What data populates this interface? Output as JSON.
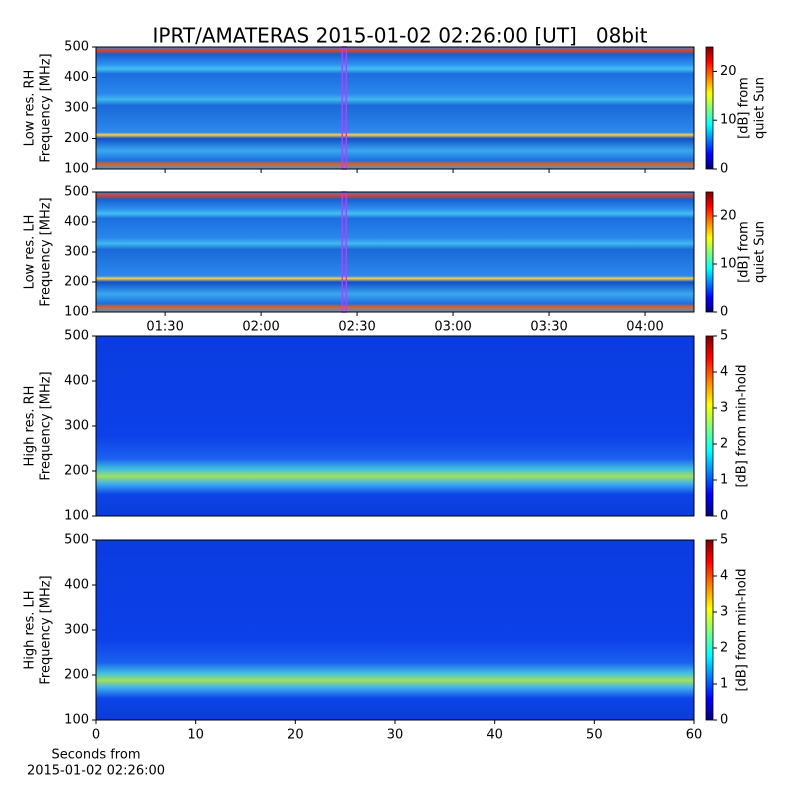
{
  "title": "IPRT/AMATERAS 2015-01-02 02:26:00 [UT]   08bit",
  "chart_data": [
    {
      "type": "heatmap",
      "ylabel": [
        "Low res. RH",
        "Frequency [MHz]"
      ],
      "ylim": [
        100,
        500
      ],
      "yticks": [
        100,
        200,
        300,
        400,
        500
      ],
      "xlim": [
        68.4,
        255.3
      ],
      "xticks": [
        90,
        120,
        150,
        180,
        210,
        240
      ],
      "highlight_x": 146,
      "highlight_color": "#cc33ff",
      "colorbar_label": [
        "[dB] from",
        "quiet Sun"
      ],
      "clim": [
        0,
        25
      ],
      "cticks": [
        0,
        10,
        20
      ]
    },
    {
      "type": "heatmap",
      "ylabel": [
        "Low res. LH",
        "Frequency [MHz]"
      ],
      "ylim": [
        100,
        500
      ],
      "yticks": [
        100,
        200,
        300,
        400,
        500
      ],
      "xlim": [
        68.4,
        255.3
      ],
      "xticks": [
        {
          "value": 90,
          "label": "01:30"
        },
        {
          "value": 120,
          "label": "02:00"
        },
        {
          "value": 150,
          "label": "02:30"
        },
        {
          "value": 180,
          "label": "03:00"
        },
        {
          "value": 210,
          "label": "03:30"
        },
        {
          "value": 240,
          "label": "04:00"
        }
      ],
      "highlight_x": 146,
      "highlight_color": "#cc33ff",
      "colorbar_label": [
        "[dB] from",
        "quiet Sun"
      ],
      "clim": [
        0,
        25
      ],
      "cticks": [
        0,
        10,
        20
      ]
    },
    {
      "type": "heatmap",
      "ylabel": [
        "High res. RH",
        "Frequency [MHz]"
      ],
      "ylim": [
        100,
        500
      ],
      "yticks": [
        100,
        200,
        300,
        400,
        500
      ],
      "colorbar_label": [
        "[dB] from min-hold"
      ],
      "clim": [
        0,
        5
      ],
      "cticks": [
        0,
        1,
        2,
        3,
        4,
        5
      ]
    },
    {
      "type": "heatmap",
      "ylabel": [
        "High res. LH",
        "Frequency [MHz]"
      ],
      "ylim": [
        100,
        500
      ],
      "yticks": [
        100,
        200,
        300,
        400,
        500
      ],
      "xlim": [
        0,
        60
      ],
      "xticks": [
        0,
        10,
        20,
        30,
        40,
        50,
        60
      ],
      "xlabel": [
        "Seconds from",
        "2015-01-02 02:26:00"
      ],
      "colorbar_label": [
        "[dB] from min-hold"
      ],
      "clim": [
        0,
        5
      ],
      "cticks": [
        0,
        1,
        2,
        3,
        4,
        5
      ]
    }
  ]
}
